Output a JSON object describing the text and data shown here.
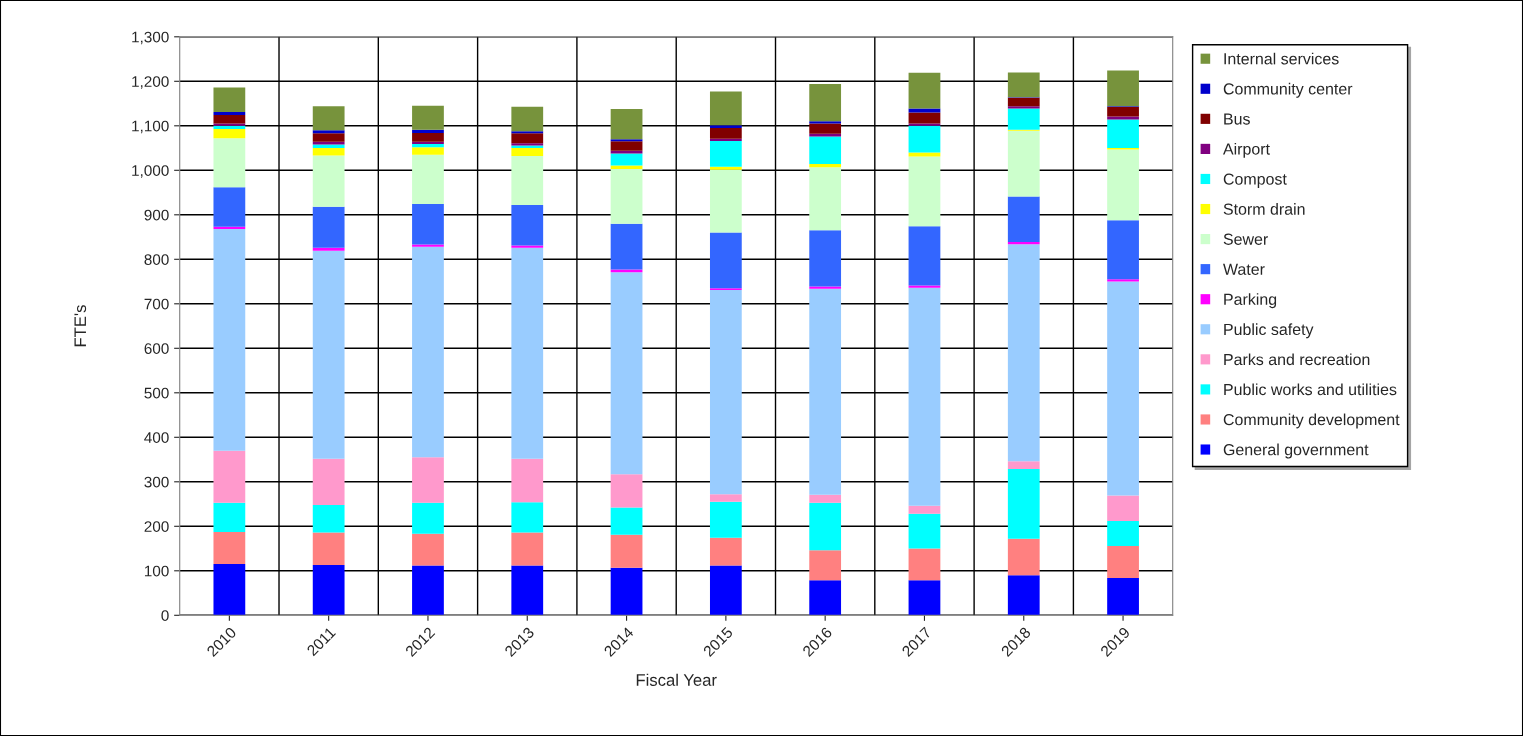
{
  "chart_data": {
    "type": "bar",
    "stacked": true,
    "xlabel": "Fiscal Year",
    "ylabel": "FTE's",
    "categories": [
      "2010",
      "2011",
      "2012",
      "2013",
      "2014",
      "2015",
      "2016",
      "2017",
      "2018",
      "2019"
    ],
    "ylim": [
      0,
      1300
    ],
    "yticks": [
      0,
      100,
      200,
      300,
      400,
      500,
      600,
      700,
      800,
      900,
      {
        "value": 1000,
        "label": "1,000"
      },
      {
        "value": 1100,
        "label": "1,100"
      },
      {
        "value": 1200,
        "label": "1,200"
      },
      {
        "value": 1300,
        "label": "1,300"
      }
    ],
    "grid": true,
    "legend": "right",
    "series": [
      {
        "name": "General government",
        "color": "#0000ff",
        "values": [
          115,
          113,
          112,
          112,
          107,
          112,
          79,
          79,
          90,
          84
        ]
      },
      {
        "name": "Community development",
        "color": "#ff8080",
        "values": [
          72,
          73,
          71,
          74,
          74,
          62,
          67,
          71,
          82,
          72
        ]
      },
      {
        "name": "Public works and utilities",
        "color": "#00ffff",
        "values": [
          66,
          62,
          70,
          68,
          61,
          81,
          107,
          78,
          157,
          56
        ]
      },
      {
        "name": "Parks and recreation",
        "color": "#ff99cc",
        "values": [
          117,
          104,
          102,
          98,
          75,
          17,
          18,
          18,
          17,
          57
        ]
      },
      {
        "name": "Public safety",
        "color": "#99ccff",
        "values": [
          498,
          467,
          473,
          474,
          454,
          459,
          463,
          490,
          488,
          481
        ]
      },
      {
        "name": "Parking",
        "color": "#ff00ff",
        "values": [
          5,
          7,
          5,
          5,
          6,
          4,
          5,
          5,
          5,
          5
        ]
      },
      {
        "name": "Water",
        "color": "#3366ff",
        "values": [
          89,
          92,
          91,
          91,
          103,
          125,
          126,
          133,
          102,
          133
        ]
      },
      {
        "name": "Sewer",
        "color": "#ccffcc",
        "values": [
          110,
          115,
          111,
          110,
          123,
          141,
          142,
          157,
          148,
          159
        ]
      },
      {
        "name": "Storm drain",
        "color": "#ffff00",
        "values": [
          21,
          17,
          17,
          18,
          8,
          7,
          7,
          9,
          2,
          3
        ]
      },
      {
        "name": "Compost",
        "color": "#00ffff",
        "values": [
          7,
          8,
          7,
          6,
          27,
          58,
          62,
          60,
          48,
          64
        ]
      },
      {
        "name": "Airport",
        "color": "#800080",
        "values": [
          5,
          6,
          5,
          5,
          6,
          5,
          6,
          5,
          5,
          7
        ]
      },
      {
        "name": "Bus",
        "color": "#800000",
        "values": [
          19,
          19,
          20,
          22,
          21,
          24,
          23,
          25,
          19,
          21
        ]
      },
      {
        "name": "Community center",
        "color": "#0000cc",
        "values": [
          7,
          7,
          7,
          5,
          5,
          6,
          5,
          9,
          1,
          2
        ]
      },
      {
        "name": "Internal services",
        "color": "#77933c",
        "values": [
          55,
          54,
          54,
          55,
          68,
          76,
          84,
          80,
          56,
          80
        ]
      }
    ]
  }
}
